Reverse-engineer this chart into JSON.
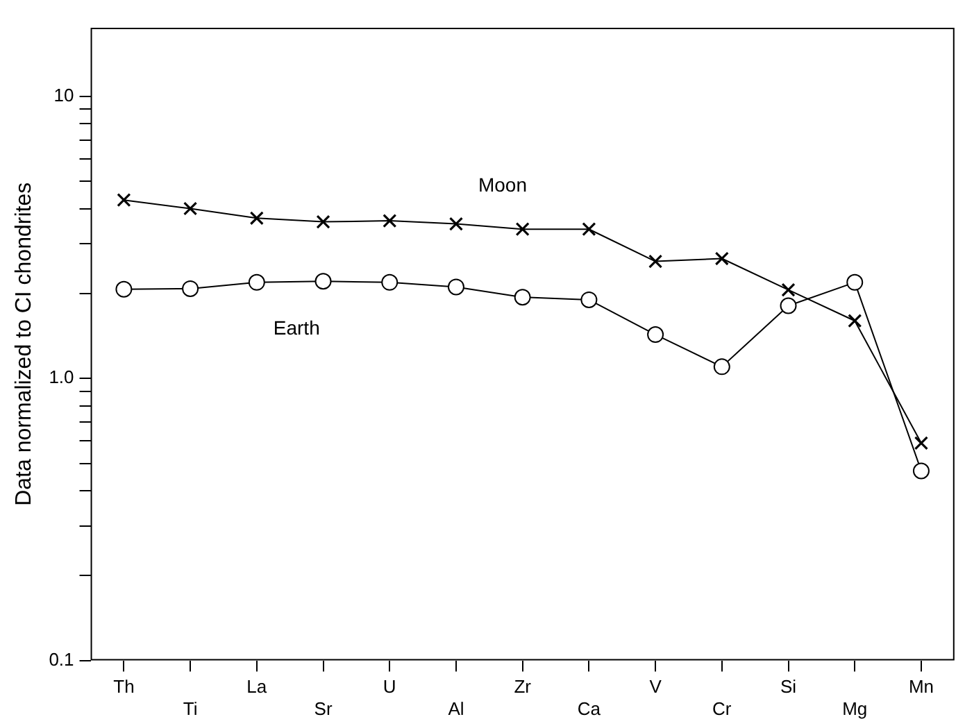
{
  "chart_data": {
    "type": "line",
    "ylabel": "Data normalized to CI chondrites",
    "categories": [
      "Th",
      "Ti",
      "La",
      "Sr",
      "U",
      "Al",
      "Zr",
      "Ca",
      "V",
      "Cr",
      "Si",
      "Mg",
      "Mn"
    ],
    "series": [
      {
        "name": "Moon",
        "color": "#000000",
        "marker": "cross",
        "values": [
          4.29,
          4.0,
          3.7,
          3.59,
          3.62,
          3.53,
          3.38,
          3.38,
          2.6,
          2.66,
          2.06,
          1.6,
          0.59
        ]
      },
      {
        "name": "Earth",
        "color": "#000000",
        "marker": "circle",
        "values": [
          2.07,
          2.08,
          2.19,
          2.21,
          2.19,
          2.11,
          1.94,
          1.9,
          1.43,
          1.1,
          1.81,
          2.19,
          0.47
        ]
      }
    ],
    "log": true,
    "ylim": [
      0.1,
      17.5
    ],
    "yticks": [
      {
        "value": 0.1,
        "label": "0.1"
      },
      {
        "value": 0.2,
        "label": null
      },
      {
        "value": 0.3,
        "label": null
      },
      {
        "value": 0.4,
        "label": null
      },
      {
        "value": 0.5,
        "label": null
      },
      {
        "value": 0.6,
        "label": null
      },
      {
        "value": 0.7,
        "label": null
      },
      {
        "value": 0.8,
        "label": null
      },
      {
        "value": 0.9,
        "label": null
      },
      {
        "value": 1,
        "label": "1.0"
      },
      {
        "value": 2,
        "label": null
      },
      {
        "value": 3,
        "label": null
      },
      {
        "value": 4,
        "label": null
      },
      {
        "value": 5,
        "label": null
      },
      {
        "value": 6,
        "label": null
      },
      {
        "value": 7,
        "label": null
      },
      {
        "value": 8,
        "label": null
      },
      {
        "value": 9,
        "label": null
      },
      {
        "value": 10,
        "label": "10"
      }
    ],
    "grid": false,
    "legend": false
  }
}
